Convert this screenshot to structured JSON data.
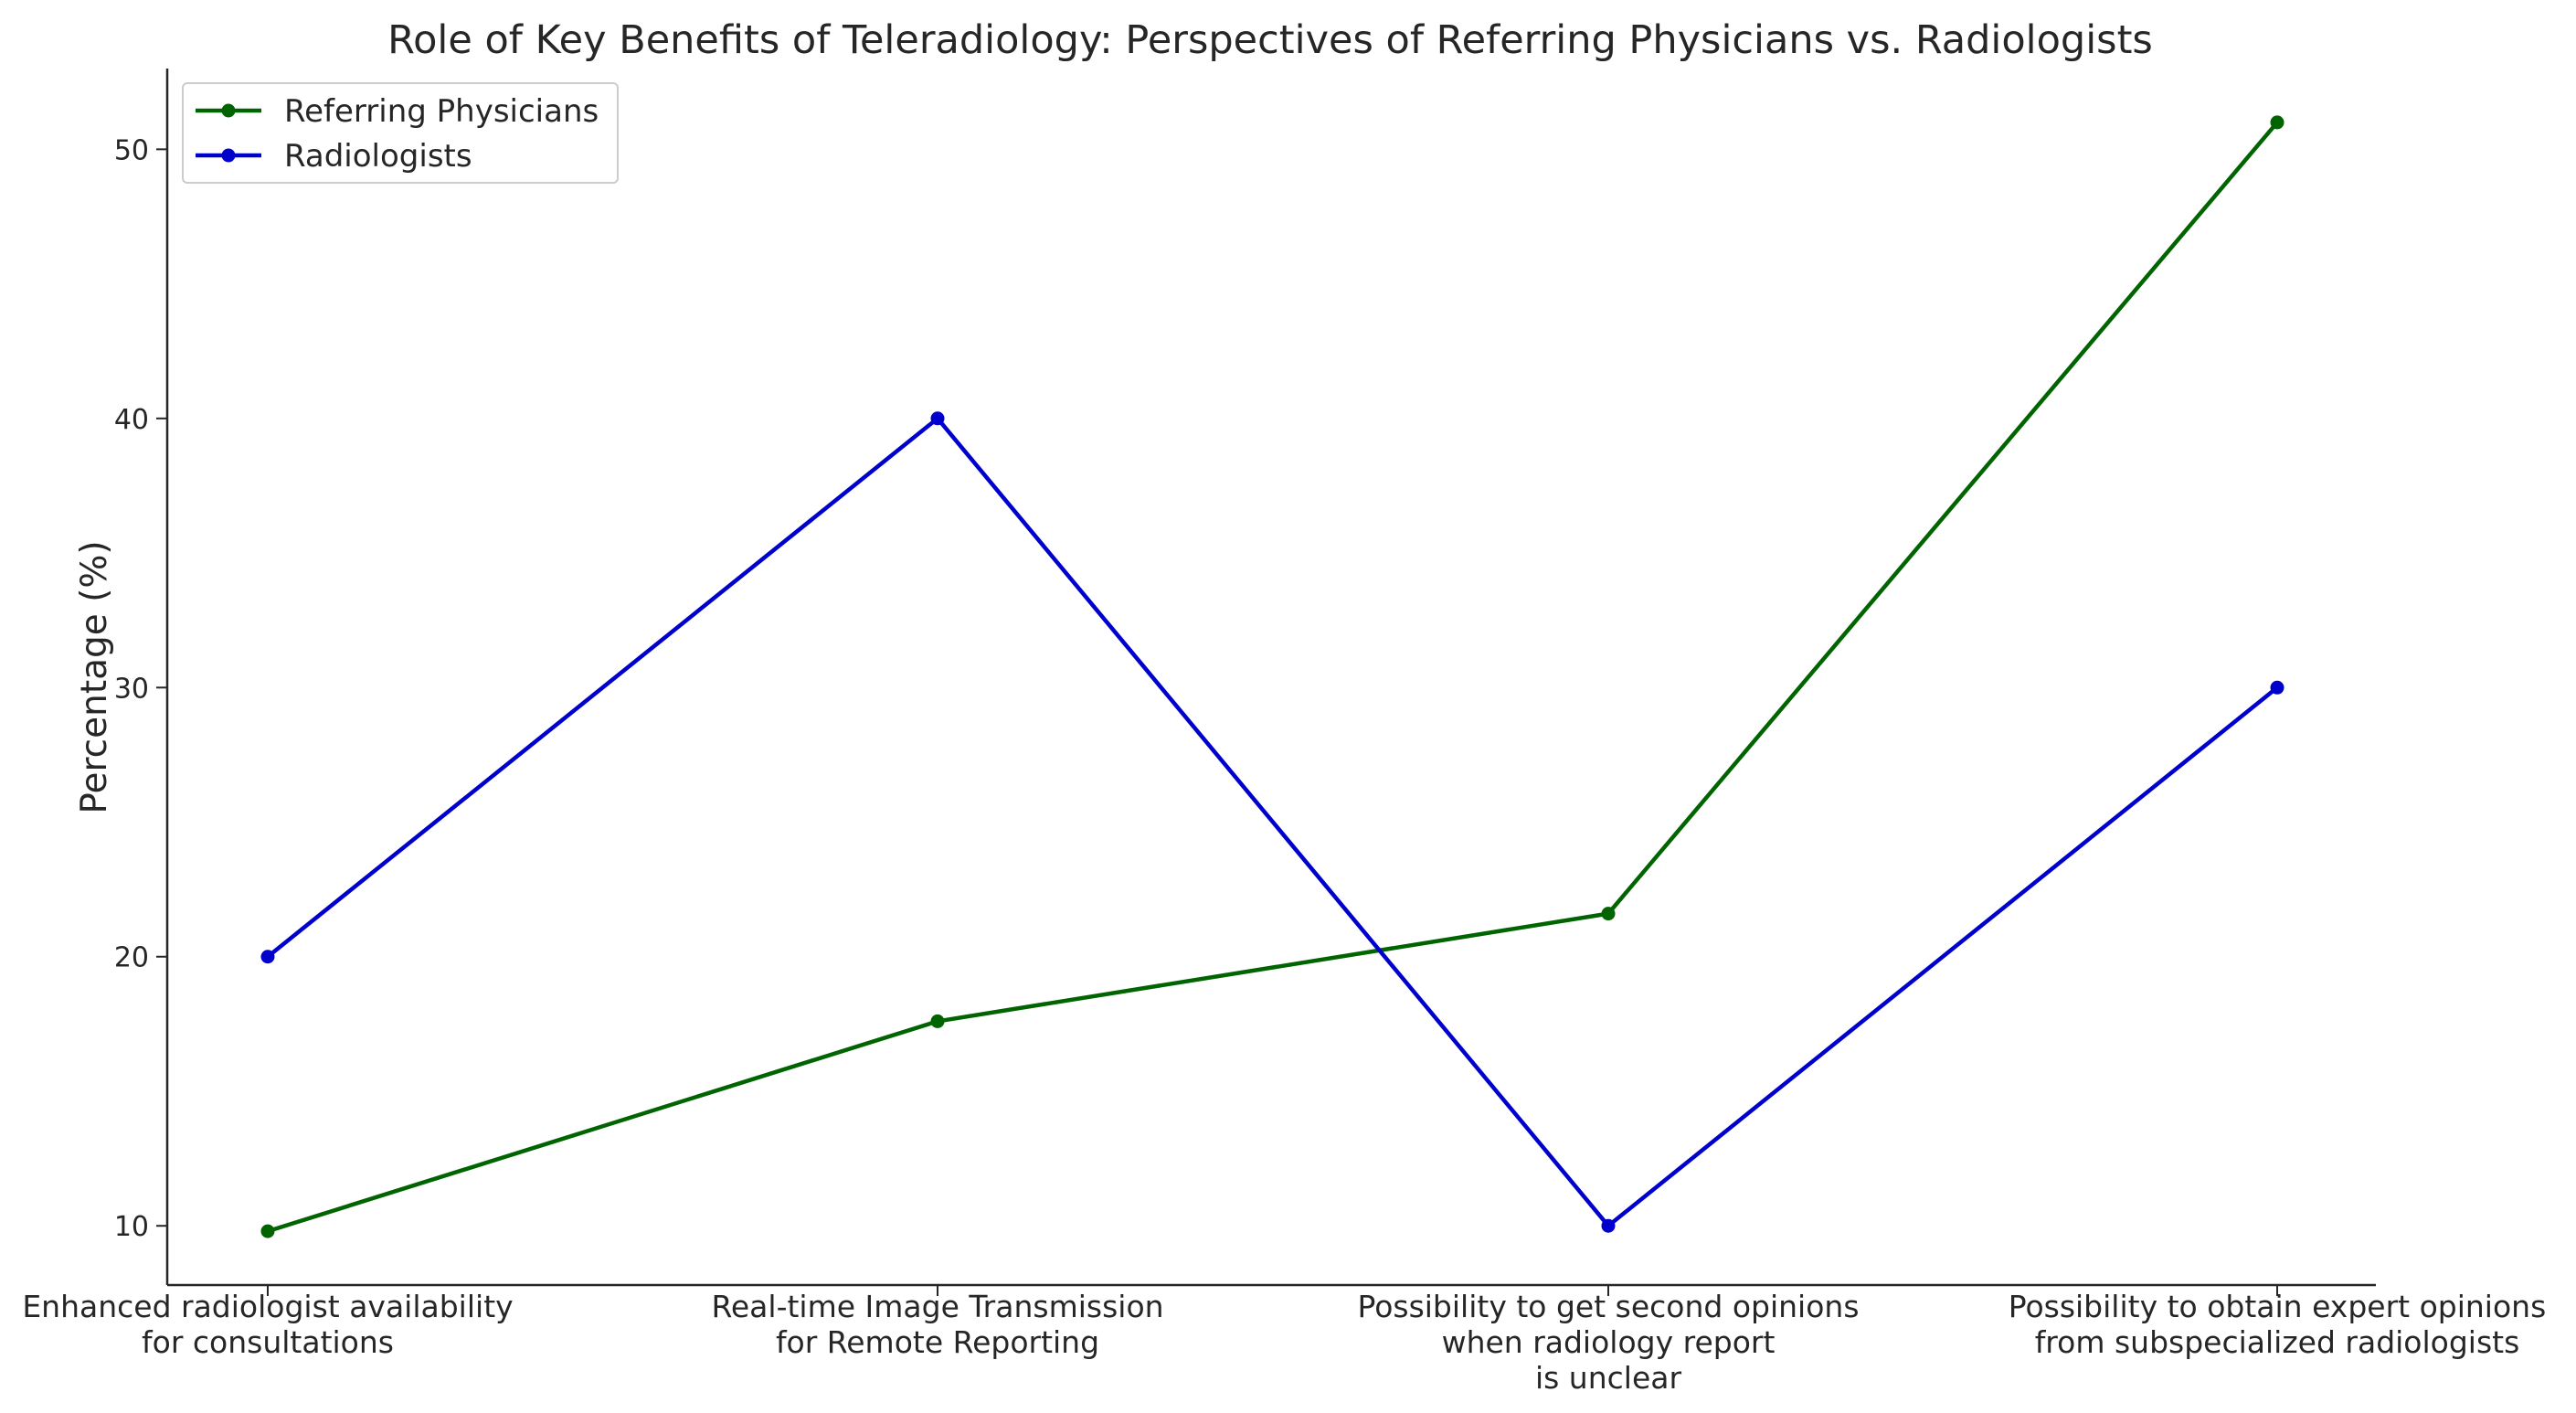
{
  "chart_data": {
    "type": "line",
    "title": "Role of Key Benefits of Teleradiology: Perspectives of Referring Physicians vs. Radiologists",
    "xlabel": "",
    "ylabel": "Percentage (%)",
    "categories": [
      [
        "Enhanced radiologist availability",
        "for consultations"
      ],
      [
        "Real-time Image Transmission",
        "for Remote Reporting"
      ],
      [
        "Possibility to get second opinions",
        "when radiology report",
        "is unclear"
      ],
      [
        "Possibility to obtain expert opinions",
        "from subspecialized radiologists"
      ]
    ],
    "yticks": [
      10,
      20,
      30,
      40,
      50
    ],
    "ylim": [
      7.8,
      53.0
    ],
    "grid": false,
    "legend_position": "top-left",
    "series": [
      {
        "name": "Referring Physicians",
        "color": "#006400",
        "values": [
          9.8,
          17.6,
          21.6,
          51.0
        ]
      },
      {
        "name": "Radiologists",
        "color": "#0000cd",
        "values": [
          20.0,
          40.0,
          10.0,
          30.0
        ]
      }
    ]
  }
}
